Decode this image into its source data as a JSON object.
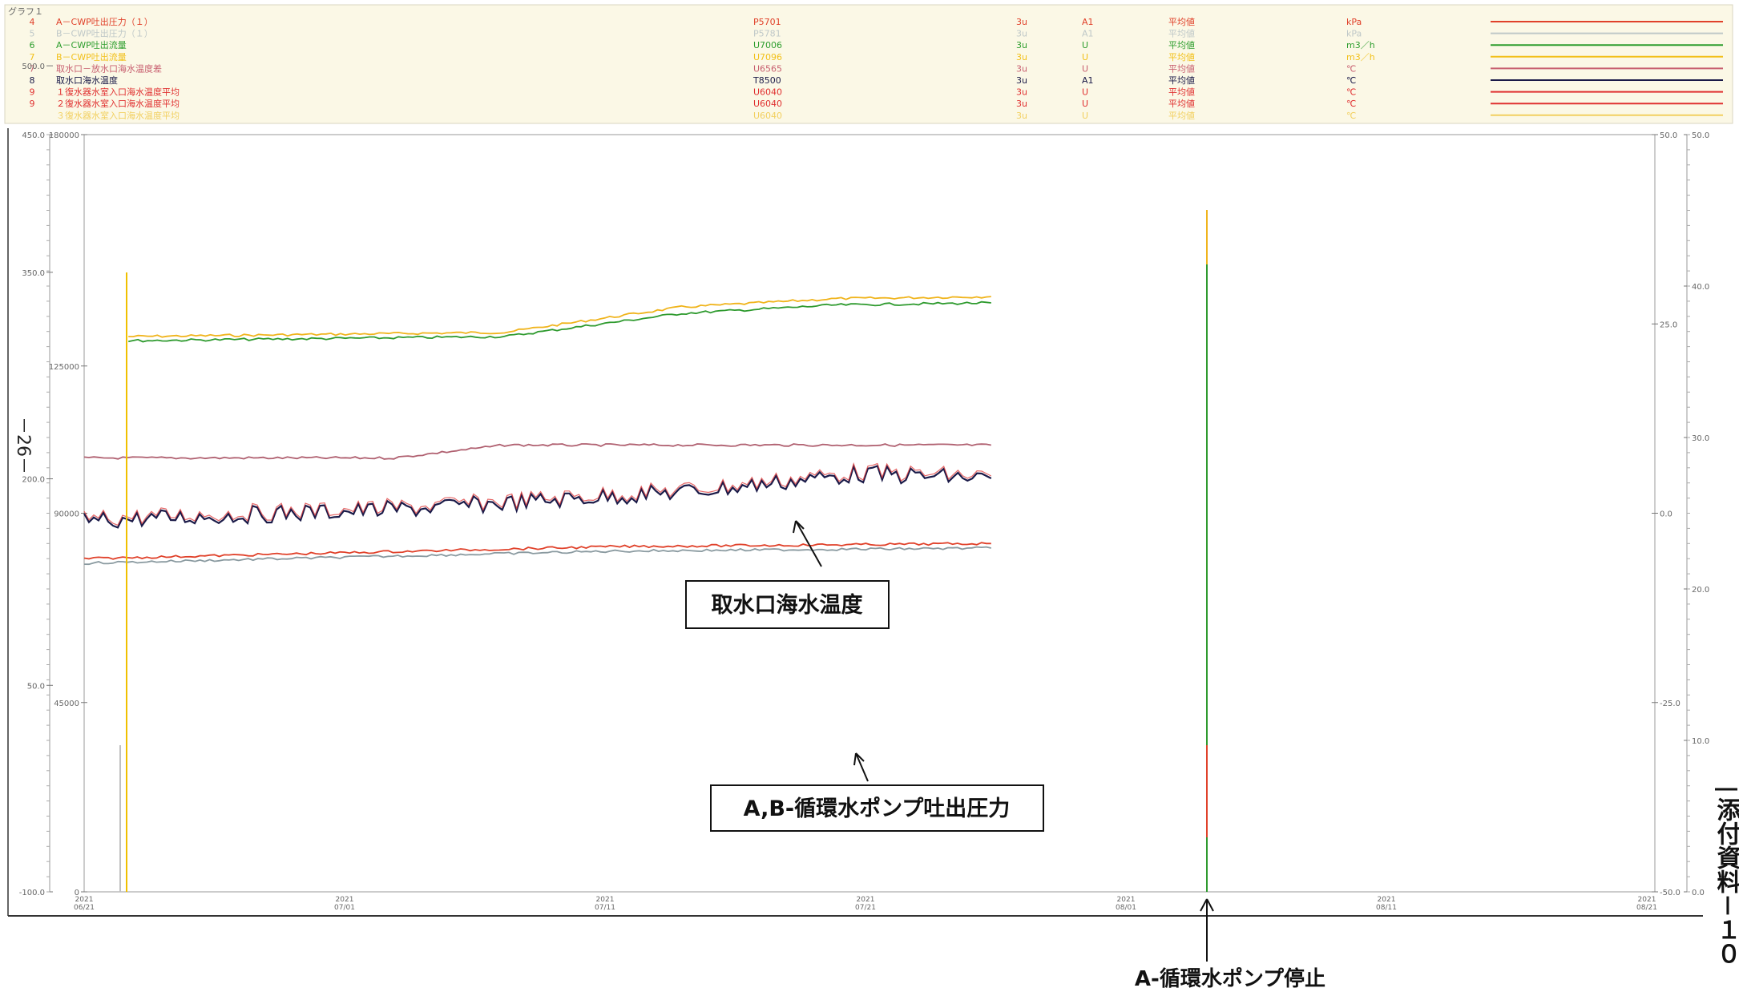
{
  "header": {
    "title": "グラフ１",
    "rows": [
      {
        "no": "4",
        "label": "A－CWP吐出圧力（１）",
        "tag": "P5701",
        "period": "3u",
        "type": "A1",
        "stat": "平均値",
        "unit": "kPa",
        "color": "#e0412a"
      },
      {
        "no": "5",
        "label": "B－CWP吐出圧力（１）",
        "tag": "P5781",
        "period": "3u",
        "type": "A1",
        "stat": "平均値",
        "unit": "kPa",
        "color": "#bfc8c8"
      },
      {
        "no": "6",
        "label": "A－CWP吐出流量",
        "tag": "U7006",
        "period": "3u",
        "type": "U",
        "stat": "平均値",
        "unit": "m3／h",
        "color": "#2e9e2e"
      },
      {
        "no": "7",
        "label": "B－CWP吐出流量",
        "tag": "U7096",
        "period": "3u",
        "type": "U",
        "stat": "平均値",
        "unit": "m3／h",
        "color": "#f2c01a"
      },
      {
        "no": "7",
        "label": "取水口－放水口海水温度差",
        "tag": "U6565",
        "period": "3u",
        "type": "U",
        "stat": "平均値",
        "unit": "℃",
        "color": "#c86070"
      },
      {
        "no": "8",
        "label": "取水口海水温度",
        "tag": "T8500",
        "period": "3u",
        "type": "A1",
        "stat": "平均値",
        "unit": "℃",
        "color": "#1a1a48"
      },
      {
        "no": "9",
        "label": "１復水器水室入口海水温度平均",
        "tag": "U6040",
        "period": "3u",
        "type": "U",
        "stat": "平均値",
        "unit": "℃",
        "color": "#e03030"
      },
      {
        "no": "9",
        "label": "２復水器水室入口海水温度平均",
        "tag": "U6040",
        "period": "3u",
        "type": "U",
        "stat": "平均値",
        "unit": "℃",
        "color": "#e03030"
      },
      {
        "no": "",
        "label": "３復水器水室入口海水温度平均",
        "tag": "U6040",
        "period": "3u",
        "type": "U",
        "stat": "平均値",
        "unit": "℃",
        "color": "#f2d060"
      }
    ]
  },
  "page_number": "－26－",
  "side_label": "添付資料－１０",
  "annotations": {
    "seawater_temp": "取水口海水温度",
    "pump_pressure": "A,B-循環水ポンプ吐出圧力",
    "pump_stop": "A-循環水ポンプ停止"
  },
  "chart_data": {
    "type": "line",
    "title": "",
    "left_axis_outer": {
      "ticks": [
        "450.0",
        "500.0",
        "350.0",
        "200.0",
        "50.0",
        "-100.0"
      ],
      "values": [
        450,
        500,
        350,
        200,
        50,
        -100
      ]
    },
    "left_axis_inner": {
      "ticks": [
        "180000",
        "125000",
        "90000",
        "45000",
        "0"
      ],
      "values": [
        180000,
        125000,
        90000,
        45000,
        0
      ]
    },
    "right_axis_inner": {
      "ticks": [
        "50.0",
        "25.0",
        "0.0",
        "-25.0",
        "-50.0"
      ],
      "values": [
        50,
        25,
        0,
        -25,
        -50
      ]
    },
    "right_axis_outer": {
      "ticks": [
        "50.0",
        "40.0",
        "30.0",
        "20.0",
        "10.0",
        "0.0"
      ],
      "values": [
        50,
        40,
        30,
        20,
        10,
        0
      ]
    },
    "x_ticks": [
      "2021\n06/21",
      "2021\n07/01",
      "2021\n07/11",
      "2021\n07/21",
      "2021\n08/01",
      "2021\n08/11",
      "2021\n08/21"
    ],
    "x_range": [
      "2021-06-21",
      "2021-08-31"
    ],
    "pump_stop_date": "2021-08-01",
    "series": [
      {
        "name": "B－CWP吐出流量",
        "color": "#f0b41c",
        "x": [
          "06/23",
          "07/10",
          "07/18",
          "07/25",
          "08/01"
        ],
        "y": [
          132000,
          133000,
          139000,
          141000,
          141500
        ]
      },
      {
        "name": "A－CWP吐出流量",
        "color": "#2e9a2e",
        "x": [
          "06/23",
          "07/10",
          "07/18",
          "07/25",
          "08/01"
        ],
        "y": [
          131000,
          132000,
          137500,
          139500,
          140000
        ]
      },
      {
        "name": "取水口－放水口海水温度差",
        "color": "#b06070",
        "x": [
          "06/21",
          "07/05",
          "07/10",
          "08/01"
        ],
        "y": [
          7.3,
          7.3,
          9.0,
          9.0
        ]
      },
      {
        "name": "取水口海水温度",
        "color": "#1a1a48",
        "x": [
          "06/21",
          "07/06",
          "07/19",
          "07/26",
          "08/01"
        ],
        "y": [
          24.5,
          25.3,
          26.5,
          27.6,
          27.3
        ]
      },
      {
        "name": "A－CWP吐出圧力（１）",
        "color": "#e0412a",
        "x": [
          "06/21",
          "07/15",
          "08/01"
        ],
        "y": [
          22.0,
          22.8,
          23.0
        ]
      },
      {
        "name": "B－CWP吐出圧力（１）",
        "color": "#8a9aa0",
        "x": [
          "06/21",
          "07/15",
          "08/01"
        ],
        "y": [
          21.7,
          22.5,
          22.7
        ]
      }
    ]
  }
}
